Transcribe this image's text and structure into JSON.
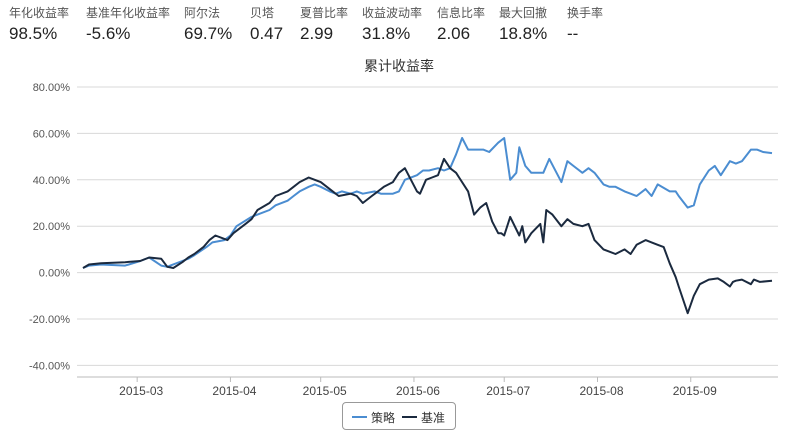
{
  "metrics": [
    {
      "label": "年化收益率",
      "value": "98.5%"
    },
    {
      "label": "基准年化收益率",
      "value": "-5.6%"
    },
    {
      "label": "阿尔法",
      "value": "69.7%"
    },
    {
      "label": "贝塔",
      "value": "0.47"
    },
    {
      "label": "夏普比率",
      "value": "2.99"
    },
    {
      "label": "收益波动率",
      "value": "31.8%"
    },
    {
      "label": "信息比率",
      "value": "2.06"
    },
    {
      "label": "最大回撤",
      "value": "18.8%"
    },
    {
      "label": "换手率",
      "value": "--"
    }
  ],
  "chart_data": {
    "type": "line",
    "title": "累计收益率",
    "xlabel": "",
    "ylabel": "",
    "xlim": [
      "2015-02-09",
      "2015-09-30"
    ],
    "ylim": [
      -45,
      80
    ],
    "yticks": [
      80,
      60,
      40,
      20,
      0,
      -20,
      -40
    ],
    "ytick_labels": [
      "80.00%",
      "60.00%",
      "40.00%",
      "20.00%",
      "0.00%",
      "-20.00%",
      "-40.00%"
    ],
    "xticks": [
      "2015-03-01",
      "2015-04-01",
      "2015-05-01",
      "2015-06-01",
      "2015-07-01",
      "2015-08-01",
      "2015-09-01"
    ],
    "xtick_labels": [
      "2015-03",
      "2015-04",
      "2015-05",
      "2015-06",
      "2015-07",
      "2015-08",
      "2015-09"
    ],
    "grid": "horizontal",
    "legend": "bottom-center",
    "series": [
      {
        "name": "策略",
        "color": "#4b8dd1",
        "x": [
          "2015-02-11",
          "2015-02-13",
          "2015-02-17",
          "2015-02-25",
          "2015-03-02",
          "2015-03-05",
          "2015-03-09",
          "2015-03-11",
          "2015-03-12",
          "2015-03-16",
          "2015-03-18",
          "2015-03-20",
          "2015-03-24",
          "2015-03-26",
          "2015-03-30",
          "2015-04-01",
          "2015-04-03",
          "2015-04-08",
          "2015-04-10",
          "2015-04-14",
          "2015-04-16",
          "2015-04-20",
          "2015-04-22",
          "2015-04-24",
          "2015-04-27",
          "2015-04-29",
          "2015-05-01",
          "2015-05-04",
          "2015-05-06",
          "2015-05-08",
          "2015-05-11",
          "2015-05-13",
          "2015-05-15",
          "2015-05-19",
          "2015-05-21",
          "2015-05-25",
          "2015-05-27",
          "2015-05-29",
          "2015-06-02",
          "2015-06-04",
          "2015-06-06",
          "2015-06-09",
          "2015-06-11",
          "2015-06-13",
          "2015-06-15",
          "2015-06-17",
          "2015-06-19",
          "2015-06-24",
          "2015-06-26",
          "2015-06-29",
          "2015-07-01",
          "2015-07-03",
          "2015-07-05",
          "2015-07-06",
          "2015-07-08",
          "2015-07-10",
          "2015-07-12",
          "2015-07-14",
          "2015-07-16",
          "2015-07-20",
          "2015-07-22",
          "2015-07-24",
          "2015-07-27",
          "2015-07-29",
          "2015-07-31",
          "2015-08-03",
          "2015-08-05",
          "2015-08-07",
          "2015-08-10",
          "2015-08-12",
          "2015-08-14",
          "2015-08-17",
          "2015-08-19",
          "2015-08-21",
          "2015-08-25",
          "2015-08-27",
          "2015-08-28",
          "2015-08-31",
          "2015-09-02",
          "2015-09-04",
          "2015-09-07",
          "2015-09-09",
          "2015-09-11",
          "2015-09-14",
          "2015-09-16",
          "2015-09-18",
          "2015-09-21",
          "2015-09-23",
          "2015-09-25",
          "2015-09-28"
        ],
        "values": [
          2.0,
          3.0,
          3.5,
          3.0,
          5.0,
          6.5,
          3.0,
          2.5,
          3.0,
          5.0,
          6.0,
          7.5,
          11.0,
          13.0,
          14.0,
          16.0,
          20.0,
          24.0,
          25.0,
          27.0,
          29.0,
          31.0,
          33.0,
          35.0,
          37.0,
          38.0,
          37.0,
          35.0,
          34.0,
          35.0,
          34.0,
          35.0,
          34.0,
          35.0,
          34.0,
          34.0,
          35.0,
          40.0,
          42.0,
          44.0,
          44.0,
          45.0,
          44.0,
          45.0,
          51.0,
          58.0,
          53.0,
          53.0,
          52.0,
          56.0,
          58.0,
          40.0,
          43.0,
          54.0,
          46.0,
          43.0,
          43.0,
          43.0,
          49.0,
          39.0,
          48.0,
          46.0,
          43.0,
          45.0,
          43.0,
          38.0,
          37.0,
          37.0,
          35.0,
          34.0,
          33.0,
          36.0,
          33.0,
          38.0,
          35.0,
          35.0,
          33.0,
          28.0,
          29.0,
          38.0,
          44.0,
          46.0,
          42.0,
          48.0,
          47.0,
          48.0,
          53.0,
          53.0,
          52.0,
          51.5
        ]
      },
      {
        "name": "基准",
        "color": "#1b2a3f",
        "x": [
          "2015-02-11",
          "2015-02-13",
          "2015-02-17",
          "2015-02-25",
          "2015-03-02",
          "2015-03-05",
          "2015-03-09",
          "2015-03-11",
          "2015-03-13",
          "2015-03-16",
          "2015-03-18",
          "2015-03-20",
          "2015-03-23",
          "2015-03-25",
          "2015-03-27",
          "2015-03-31",
          "2015-04-02",
          "2015-04-06",
          "2015-04-08",
          "2015-04-10",
          "2015-04-14",
          "2015-04-16",
          "2015-04-20",
          "2015-04-22",
          "2015-04-24",
          "2015-04-27",
          "2015-04-29",
          "2015-05-01",
          "2015-05-04",
          "2015-05-07",
          "2015-05-11",
          "2015-05-13",
          "2015-05-15",
          "2015-05-18",
          "2015-05-20",
          "2015-05-22",
          "2015-05-25",
          "2015-05-27",
          "2015-05-29",
          "2015-06-02",
          "2015-06-03",
          "2015-06-05",
          "2015-06-07",
          "2015-06-09",
          "2015-06-11",
          "2015-06-13",
          "2015-06-15",
          "2015-06-16",
          "2015-06-19",
          "2015-06-21",
          "2015-06-23",
          "2015-06-25",
          "2015-06-27",
          "2015-06-29",
          "2015-06-30",
          "2015-07-01",
          "2015-07-03",
          "2015-07-06",
          "2015-07-07",
          "2015-07-08",
          "2015-07-10",
          "2015-07-13",
          "2015-07-14",
          "2015-07-15",
          "2015-07-17",
          "2015-07-20",
          "2015-07-22",
          "2015-07-24",
          "2015-07-27",
          "2015-07-29",
          "2015-07-31",
          "2015-08-03",
          "2015-08-05",
          "2015-08-07",
          "2015-08-10",
          "2015-08-12",
          "2015-08-14",
          "2015-08-17",
          "2015-08-19",
          "2015-08-21",
          "2015-08-23",
          "2015-08-25",
          "2015-08-27",
          "2015-08-28",
          "2015-08-31",
          "2015-09-02",
          "2015-09-04",
          "2015-09-07",
          "2015-09-10",
          "2015-09-12",
          "2015-09-14",
          "2015-09-15",
          "2015-09-16",
          "2015-09-18",
          "2015-09-21",
          "2015-09-22",
          "2015-09-24",
          "2015-09-28"
        ],
        "values": [
          2.0,
          3.5,
          4.0,
          4.5,
          5.0,
          6.5,
          6.0,
          2.5,
          2.0,
          4.5,
          6.5,
          8.0,
          11.0,
          14.0,
          16.0,
          14.0,
          17.0,
          21.0,
          23.0,
          27.0,
          30.0,
          33.0,
          35.0,
          37.0,
          39.0,
          41.0,
          40.0,
          39.0,
          36.0,
          33.0,
          34.0,
          33.0,
          30.0,
          33.0,
          35.0,
          37.0,
          39.0,
          43.0,
          45.0,
          35.0,
          34.0,
          40.0,
          41.0,
          42.0,
          49.0,
          45.0,
          43.0,
          41.0,
          35.0,
          25.0,
          28.0,
          30.0,
          22.0,
          17.0,
          17.0,
          16.0,
          24.0,
          16.0,
          20.0,
          13.0,
          17.0,
          21.0,
          13.0,
          27.0,
          25.0,
          20.0,
          23.0,
          21.0,
          20.0,
          21.0,
          14.0,
          10.0,
          9.0,
          8.0,
          10.0,
          8.0,
          12.0,
          14.0,
          13.0,
          12.0,
          11.0,
          4.0,
          -2.0,
          -6.0,
          -17.5,
          -10.0,
          -5.0,
          -3.0,
          -2.5,
          -4.0,
          -6.0,
          -4.0,
          -3.5,
          -3.0,
          -5.0,
          -3.0,
          -4.0,
          -3.5
        ]
      }
    ]
  }
}
